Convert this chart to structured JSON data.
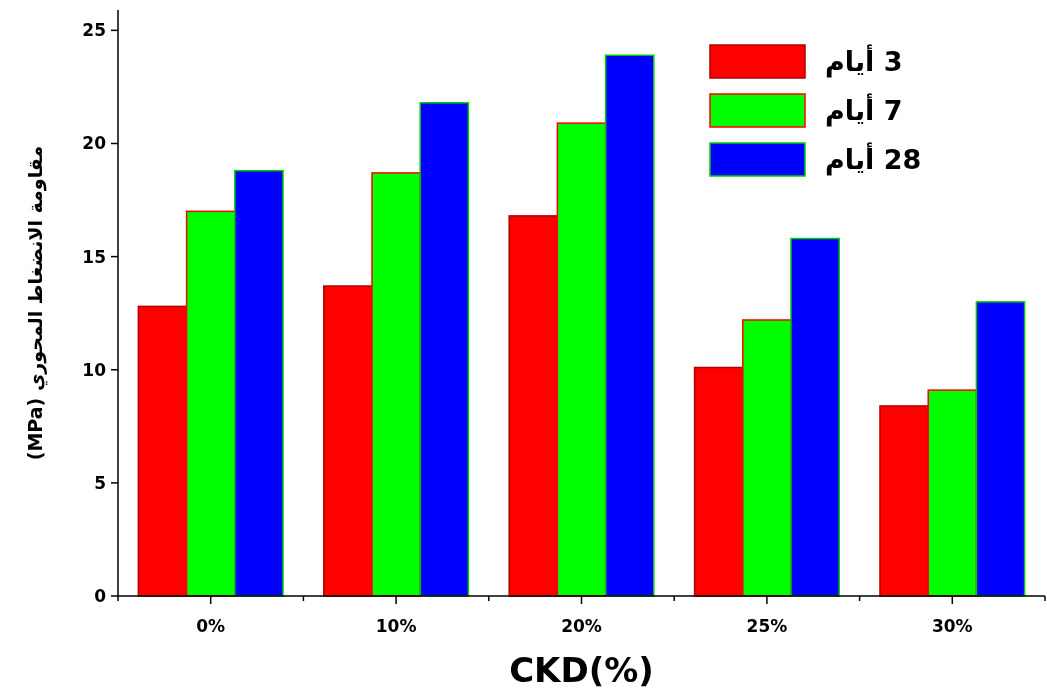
{
  "chart_data": {
    "type": "bar",
    "xlabel": "CKD(%)",
    "ylabel": "مقاومة الانضغاط المحوري (MPa)",
    "categories": [
      "0%",
      "10%",
      "20%",
      "25%",
      "30%"
    ],
    "series": [
      {
        "name": "3 أيام",
        "color": "#ff0000",
        "values": [
          12.8,
          13.7,
          16.8,
          10.1,
          8.4
        ]
      },
      {
        "name": "7 أيام",
        "color": "#00ff00",
        "values": [
          17.0,
          18.7,
          20.9,
          12.2,
          9.1
        ]
      },
      {
        "name": "28 أيام",
        "color": "#0000ff",
        "values": [
          18.8,
          21.8,
          23.9,
          15.8,
          13.0
        ]
      }
    ],
    "ylim": [
      0,
      25.9
    ],
    "yticks": [
      0,
      5,
      10,
      15,
      20,
      25
    ],
    "grid": false,
    "legend": "top right"
  }
}
